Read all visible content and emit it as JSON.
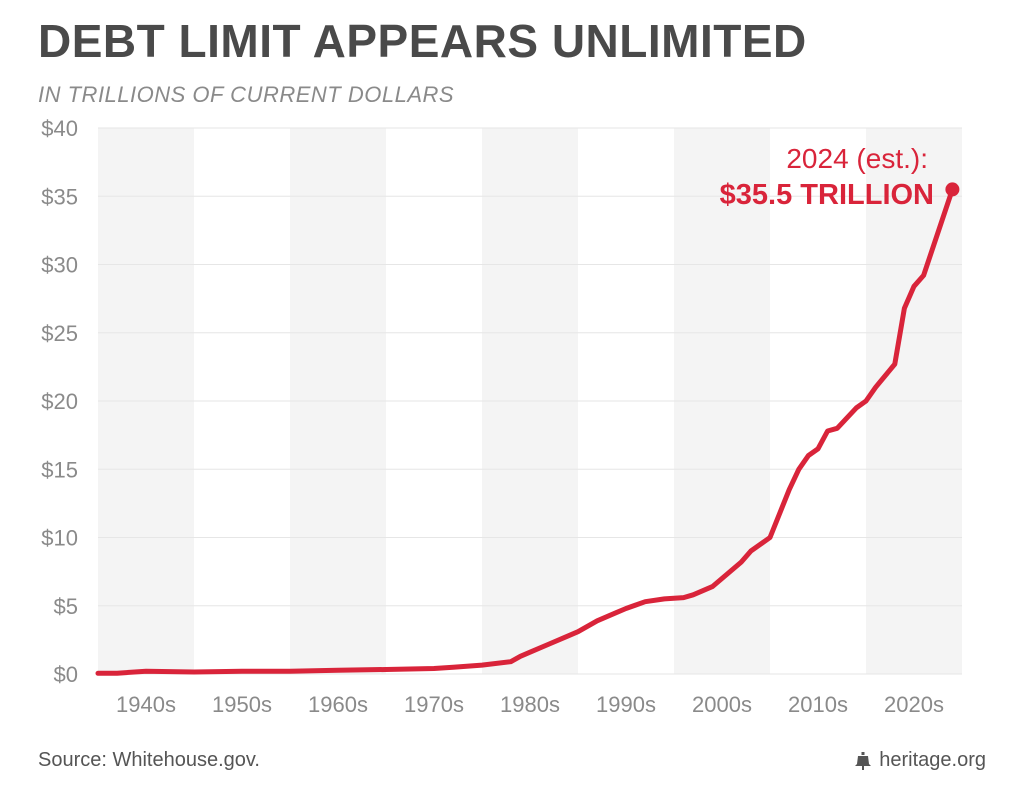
{
  "header": {
    "title": "DEBT LIMIT APPEARS UNLIMITED",
    "subtitle": "IN TRILLIONS OF CURRENT DOLLARS"
  },
  "footer": {
    "source": "Source: Whitehouse.gov.",
    "brand": "heritage.org",
    "brand_icon": "liberty-bell-icon"
  },
  "colors": {
    "line": "#d9243a",
    "band": "#f4f4f4",
    "tick_text": "#8a8a8a"
  },
  "chart_data": {
    "type": "line",
    "title": "DEBT LIMIT APPEARS UNLIMITED",
    "subtitle": "IN TRILLIONS OF CURRENT DOLLARS",
    "xlabel": "",
    "ylabel": "",
    "xlim": [
      1935,
      2025
    ],
    "ylim": [
      0,
      40
    ],
    "grid": true,
    "legend": "none",
    "x_ticks": [
      {
        "label": "1940s",
        "x": 1940
      },
      {
        "label": "1950s",
        "x": 1950
      },
      {
        "label": "1960s",
        "x": 1960
      },
      {
        "label": "1970s",
        "x": 1970
      },
      {
        "label": "1980s",
        "x": 1980
      },
      {
        "label": "1990s",
        "x": 1990
      },
      {
        "label": "2000s",
        "x": 2000
      },
      {
        "label": "2010s",
        "x": 2010
      },
      {
        "label": "2020s",
        "x": 2020
      }
    ],
    "y_ticks": [
      {
        "label": "$0",
        "value": 0
      },
      {
        "label": "$5",
        "value": 5
      },
      {
        "label": "$10",
        "value": 10
      },
      {
        "label": "$15",
        "value": 15
      },
      {
        "label": "$20",
        "value": 20
      },
      {
        "label": "$25",
        "value": 25
      },
      {
        "label": "$30",
        "value": 30
      },
      {
        "label": "$35",
        "value": 35
      },
      {
        "label": "$40",
        "value": 40
      }
    ],
    "series": [
      {
        "x": [
          1935,
          1937,
          1940,
          1945,
          1950,
          1955,
          1960,
          1965,
          1970,
          1972,
          1975,
          1978,
          1979,
          1980,
          1982,
          1984,
          1985,
          1987,
          1989,
          1990,
          1992,
          1994,
          1996,
          1997,
          1999,
          2002,
          2003,
          2005,
          2007,
          2008,
          2009,
          2010,
          2011,
          2012,
          2014,
          2015,
          2016,
          2018,
          2019,
          2020,
          2021,
          2024
        ],
        "y": [
          0.05,
          0.06,
          0.2,
          0.15,
          0.2,
          0.2,
          0.28,
          0.33,
          0.4,
          0.5,
          0.65,
          0.9,
          1.3,
          1.6,
          2.2,
          2.8,
          3.1,
          3.9,
          4.5,
          4.8,
          5.3,
          5.5,
          5.6,
          5.8,
          6.4,
          8.2,
          9.0,
          10.0,
          13.5,
          15.0,
          16.0,
          16.5,
          17.8,
          18.0,
          19.5,
          20.0,
          21.0,
          22.7,
          26.8,
          28.4,
          29.2,
          35.5
        ]
      }
    ],
    "annotations": [
      {
        "text": "2024 (est.):",
        "x": 2024,
        "y": 35.5
      },
      {
        "text": "$35.5 TRILLION",
        "x": 2024,
        "y": 35.5
      }
    ]
  }
}
